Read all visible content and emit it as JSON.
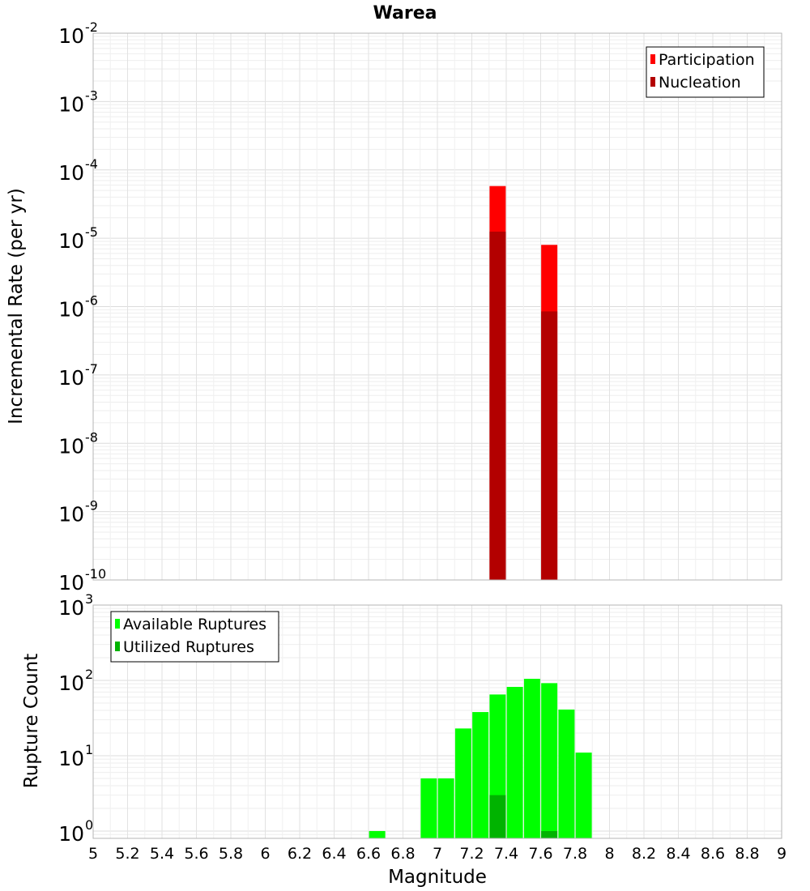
{
  "chart_data": [
    {
      "type": "bar",
      "title": "Warea",
      "ylabel": "Incremental Rate (per yr)",
      "xlabel": "",
      "yscale": "log",
      "ylim": [
        1e-10,
        0.01
      ],
      "xlim": [
        5,
        9
      ],
      "grid": true,
      "legend_position": "top-right",
      "y_ticks": [
        {
          "base": "10",
          "exp": "-10",
          "value": 1e-10
        },
        {
          "base": "10",
          "exp": "-9",
          "value": 1e-09
        },
        {
          "base": "10",
          "exp": "-8",
          "value": 1e-08
        },
        {
          "base": "10",
          "exp": "-7",
          "value": 1e-07
        },
        {
          "base": "10",
          "exp": "-6",
          "value": 1e-06
        },
        {
          "base": "10",
          "exp": "-5",
          "value": 1e-05
        },
        {
          "base": "10",
          "exp": "-4",
          "value": 0.0001
        },
        {
          "base": "10",
          "exp": "-3",
          "value": 0.001
        },
        {
          "base": "10",
          "exp": "-2",
          "value": 0.01
        }
      ],
      "series": [
        {
          "name": "Participation",
          "color": "#ff0000",
          "x": [
            7.35,
            7.65
          ],
          "values": [
            5.8e-05,
            8e-06
          ]
        },
        {
          "name": "Nucleation",
          "color": "#b30000",
          "x": [
            7.35,
            7.65
          ],
          "values": [
            1.25e-05,
            8.5e-07
          ]
        }
      ]
    },
    {
      "type": "bar",
      "title": "",
      "ylabel": "Rupture Count",
      "xlabel": "Magnitude",
      "yscale": "log",
      "ylim": [
        0.8,
        1000
      ],
      "xlim": [
        5,
        9
      ],
      "grid": true,
      "legend_position": "top-left",
      "x_ticks": [
        "5",
        "5.2",
        "5.4",
        "5.6",
        "5.8",
        "6",
        "6.2",
        "6.4",
        "6.6",
        "6.8",
        "7",
        "7.2",
        "7.4",
        "7.6",
        "7.8",
        "8",
        "8.2",
        "8.4",
        "8.6",
        "8.8",
        "9"
      ],
      "y_ticks": [
        {
          "base": "10",
          "exp": "0",
          "value": 1
        },
        {
          "base": "10",
          "exp": "1",
          "value": 10
        },
        {
          "base": "10",
          "exp": "2",
          "value": 100
        },
        {
          "base": "10",
          "exp": "3",
          "value": 1000
        }
      ],
      "series": [
        {
          "name": "Available Ruptures",
          "color": "#00ff00",
          "x": [
            6.65,
            6.95,
            7.05,
            7.15,
            7.25,
            7.35,
            7.45,
            7.55,
            7.65,
            7.75,
            7.85
          ],
          "values": [
            1,
            5,
            5,
            23,
            38,
            65,
            82,
            105,
            92,
            41,
            11
          ]
        },
        {
          "name": "Utilized Ruptures",
          "color": "#00b300",
          "x": [
            7.35,
            7.65
          ],
          "values": [
            3,
            1
          ]
        }
      ]
    }
  ]
}
